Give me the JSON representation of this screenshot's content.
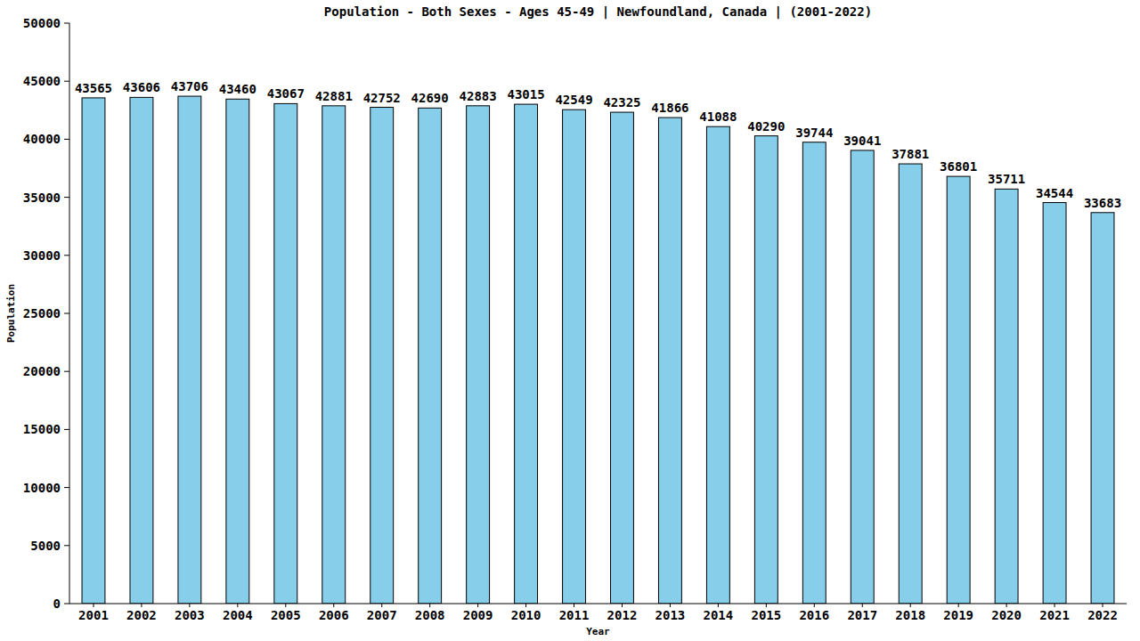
{
  "chart_data": {
    "type": "bar",
    "title": "Population - Both Sexes - Ages 45-49 | Newfoundland, Canada |  (2001-2022)",
    "x_label": "Year",
    "y_label": "Population",
    "categories": [
      "2001",
      "2002",
      "2003",
      "2004",
      "2005",
      "2006",
      "2007",
      "2008",
      "2009",
      "2010",
      "2011",
      "2012",
      "2013",
      "2014",
      "2015",
      "2016",
      "2017",
      "2018",
      "2019",
      "2020",
      "2021",
      "2022"
    ],
    "values": [
      43565,
      43606,
      43706,
      43460,
      43067,
      42881,
      42752,
      42690,
      42883,
      43015,
      42549,
      42325,
      41866,
      41088,
      40290,
      39744,
      39041,
      37881,
      36801,
      35711,
      34544,
      33683
    ],
    "color": "#87ceeb",
    "ylim": [
      0,
      50000
    ],
    "yticks": [
      0,
      5000,
      10000,
      15000,
      20000,
      25000,
      30000,
      35000,
      40000,
      45000,
      50000
    ],
    "grid": false,
    "data_labels": true
  }
}
